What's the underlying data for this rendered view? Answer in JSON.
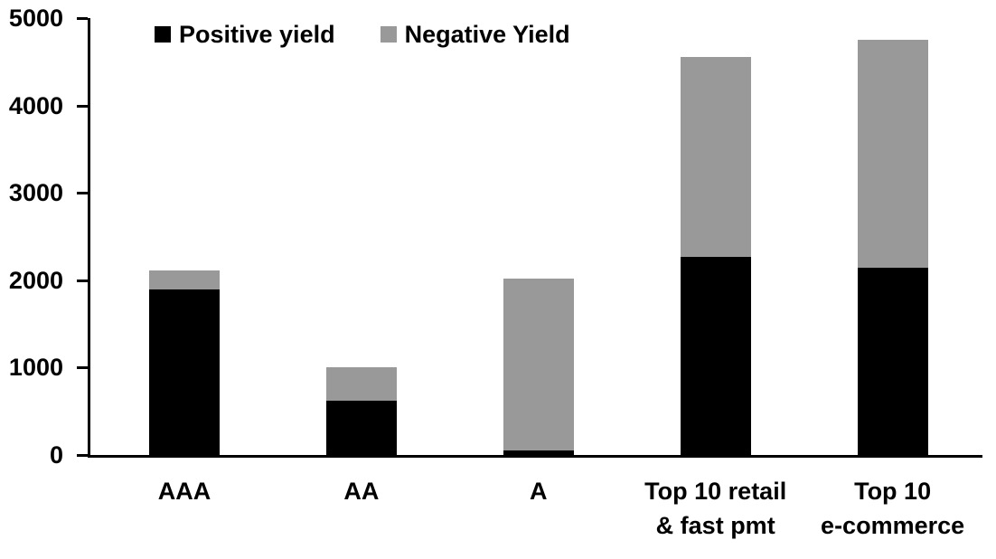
{
  "chart_data": {
    "type": "bar",
    "stacked": true,
    "title": "",
    "xlabel": "",
    "ylabel": "",
    "categories": [
      "AAA",
      "AA",
      "A",
      "Top 10 retail & fast pmt",
      "Top 10 e-commerce"
    ],
    "category_label_lines": [
      [
        "AAA"
      ],
      [
        "AA"
      ],
      [
        "A"
      ],
      [
        "Top 10 retail",
        "& fast pmt"
      ],
      [
        "Top 10",
        "e-commerce"
      ]
    ],
    "series": [
      {
        "name": "Positive yield",
        "color": "#000000",
        "values": [
          1890,
          620,
          50,
          2270,
          2140
        ]
      },
      {
        "name": "Negative Yield",
        "color": "#999999",
        "values": [
          220,
          380,
          1970,
          2280,
          2610
        ]
      }
    ],
    "ylim": [
      0,
      5000
    ],
    "yticks": [
      0,
      1000,
      2000,
      3000,
      4000,
      5000
    ],
    "grid": false,
    "legend_position": "top",
    "axis_color": "#000000",
    "background_color": "#ffffff"
  }
}
